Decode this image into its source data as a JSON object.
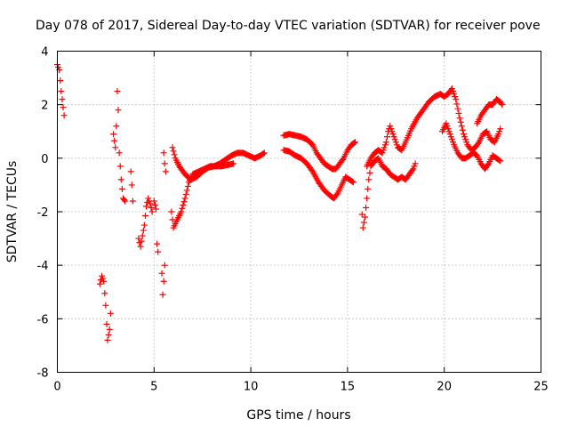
{
  "chart_data": {
    "type": "scatter",
    "title": "Day 078 of 2017, Sidereal Day-to-day VTEC variation (SDTVAR) for receiver pove",
    "xlabel": "GPS time / hours",
    "ylabel": "SDTVAR / TECUs",
    "xlim": [
      0,
      25
    ],
    "ylim": [
      -8,
      4
    ],
    "xticks": [
      "0",
      "5",
      "10",
      "15",
      "20",
      "25"
    ],
    "yticks": [
      "-8",
      "-6",
      "-4",
      "-2",
      "0",
      "2",
      "4"
    ],
    "grid": true,
    "marker": "+",
    "color": "#ff0000",
    "segments": [
      [
        [
          0.0,
          3.5
        ],
        [
          0.1,
          3.3
        ],
        [
          0.15,
          2.9
        ],
        [
          0.2,
          2.5
        ],
        [
          0.25,
          2.2
        ],
        [
          0.3,
          1.9
        ],
        [
          0.35,
          1.6
        ]
      ],
      [
        [
          2.2,
          -4.7
        ],
        [
          2.3,
          -4.4
        ],
        [
          2.4,
          -4.6
        ],
        [
          2.5,
          -5.5
        ],
        [
          2.55,
          -6.2
        ],
        [
          2.6,
          -6.8
        ],
        [
          2.7,
          -6.4
        ],
        [
          2.75,
          -5.8
        ]
      ],
      [
        [
          2.9,
          0.9
        ],
        [
          3.0,
          0.4
        ],
        [
          3.05,
          1.2
        ],
        [
          3.1,
          2.5
        ],
        [
          3.15,
          1.8
        ],
        [
          3.2,
          0.2
        ],
        [
          3.3,
          -0.8
        ],
        [
          3.4,
          -1.5
        ],
        [
          3.5,
          -1.6
        ]
      ],
      [
        [
          3.8,
          -0.5
        ],
        [
          3.85,
          -1.0
        ],
        [
          3.9,
          -1.6
        ]
      ],
      [
        [
          4.2,
          -3.0
        ],
        [
          4.3,
          -3.3
        ],
        [
          4.4,
          -2.9
        ],
        [
          4.5,
          -2.5
        ],
        [
          4.6,
          -1.8
        ],
        [
          4.7,
          -1.5
        ],
        [
          4.8,
          -1.7
        ],
        [
          4.9,
          -2.0
        ]
      ],
      [
        [
          5.0,
          -1.6
        ],
        [
          5.1,
          -1.9
        ],
        [
          5.15,
          -3.2
        ],
        [
          5.2,
          -3.5
        ]
      ],
      [
        [
          5.4,
          -4.3
        ],
        [
          5.45,
          -5.1
        ],
        [
          5.5,
          -4.6
        ],
        [
          5.55,
          -4.0
        ]
      ],
      [
        [
          5.5,
          0.2
        ],
        [
          5.55,
          -0.2
        ],
        [
          5.6,
          -0.5
        ]
      ],
      [
        [
          5.9,
          -2.0
        ],
        [
          6.0,
          -2.6
        ],
        [
          6.2,
          -2.3
        ],
        [
          6.4,
          -2.0
        ],
        [
          6.6,
          -1.5
        ],
        [
          6.8,
          -0.9
        ],
        [
          7.0,
          -0.6
        ],
        [
          7.3,
          -0.5
        ],
        [
          7.6,
          -0.4
        ],
        [
          7.9,
          -0.3
        ],
        [
          8.2,
          -0.3
        ],
        [
          8.5,
          -0.3
        ],
        [
          8.8,
          -0.25
        ],
        [
          9.1,
          -0.2
        ]
      ],
      [
        [
          5.95,
          0.4
        ],
        [
          6.1,
          0.0
        ],
        [
          6.3,
          -0.3
        ],
        [
          6.6,
          -0.6
        ],
        [
          6.9,
          -0.8
        ],
        [
          7.2,
          -0.7
        ],
        [
          7.5,
          -0.5
        ],
        [
          7.8,
          -0.35
        ],
        [
          8.1,
          -0.3
        ],
        [
          8.4,
          -0.2
        ],
        [
          8.7,
          -0.05
        ],
        [
          9.0,
          0.1
        ],
        [
          9.3,
          0.2
        ],
        [
          9.6,
          0.2
        ],
        [
          9.9,
          0.1
        ],
        [
          10.2,
          0.0
        ],
        [
          10.5,
          0.1
        ],
        [
          10.7,
          0.2
        ]
      ],
      [
        [
          11.7,
          0.3
        ],
        [
          12.0,
          0.25
        ],
        [
          12.3,
          0.1
        ],
        [
          12.6,
          0.0
        ],
        [
          12.9,
          -0.2
        ],
        [
          13.2,
          -0.5
        ],
        [
          13.5,
          -0.9
        ],
        [
          13.8,
          -1.2
        ],
        [
          14.1,
          -1.4
        ],
        [
          14.3,
          -1.5
        ],
        [
          14.5,
          -1.3
        ],
        [
          14.7,
          -1.0
        ],
        [
          14.9,
          -0.7
        ],
        [
          15.1,
          -0.8
        ],
        [
          15.3,
          -0.9
        ]
      ],
      [
        [
          11.7,
          0.85
        ],
        [
          12.0,
          0.9
        ],
        [
          12.3,
          0.85
        ],
        [
          12.6,
          0.8
        ],
        [
          12.9,
          0.7
        ],
        [
          13.2,
          0.5
        ],
        [
          13.4,
          0.2
        ],
        [
          13.6,
          0.0
        ],
        [
          13.8,
          -0.2
        ],
        [
          14.0,
          -0.3
        ],
        [
          14.2,
          -0.4
        ],
        [
          14.4,
          -0.4
        ],
        [
          14.6,
          -0.2
        ],
        [
          14.8,
          0.0
        ],
        [
          15.0,
          0.3
        ],
        [
          15.2,
          0.5
        ],
        [
          15.4,
          0.6
        ]
      ],
      [
        [
          15.75,
          -2.1
        ],
        [
          15.8,
          -2.6
        ],
        [
          15.9,
          -2.2
        ],
        [
          16.0,
          -1.5
        ],
        [
          16.1,
          -0.8
        ],
        [
          16.2,
          -0.3
        ],
        [
          16.4,
          -0.1
        ],
        [
          16.6,
          0.0
        ],
        [
          16.8,
          -0.3
        ],
        [
          17.0,
          -0.4
        ],
        [
          17.2,
          -0.6
        ],
        [
          17.4,
          -0.7
        ],
        [
          17.6,
          -0.8
        ],
        [
          17.8,
          -0.7
        ],
        [
          18.0,
          -0.8
        ],
        [
          18.2,
          -0.6
        ],
        [
          18.4,
          -0.4
        ],
        [
          18.5,
          -0.2
        ]
      ],
      [
        [
          16.0,
          -0.3
        ],
        [
          16.2,
          0.0
        ],
        [
          16.4,
          0.2
        ],
        [
          16.6,
          0.3
        ],
        [
          16.8,
          0.2
        ],
        [
          17.0,
          0.6
        ],
        [
          17.1,
          1.0
        ],
        [
          17.2,
          1.2
        ],
        [
          17.4,
          0.8
        ],
        [
          17.6,
          0.4
        ],
        [
          17.8,
          0.3
        ],
        [
          18.0,
          0.6
        ],
        [
          18.3,
          1.1
        ],
        [
          18.6,
          1.5
        ],
        [
          18.9,
          1.8
        ],
        [
          19.2,
          2.1
        ],
        [
          19.5,
          2.3
        ],
        [
          19.8,
          2.4
        ],
        [
          20.0,
          2.3
        ],
        [
          20.2,
          2.4
        ],
        [
          20.4,
          2.6
        ],
        [
          20.6,
          2.2
        ],
        [
          20.8,
          1.5
        ],
        [
          21.0,
          0.9
        ],
        [
          21.2,
          0.5
        ],
        [
          21.4,
          0.3
        ],
        [
          21.6,
          0.4
        ],
        [
          21.8,
          0.6
        ],
        [
          22.0,
          0.9
        ],
        [
          22.2,
          1.0
        ],
        [
          22.4,
          0.7
        ],
        [
          22.6,
          0.6
        ],
        [
          22.8,
          0.9
        ],
        [
          22.9,
          1.1
        ]
      ],
      [
        [
          19.9,
          1.0
        ],
        [
          20.1,
          1.3
        ],
        [
          20.3,
          0.9
        ],
        [
          20.5,
          0.5
        ],
        [
          20.7,
          0.2
        ],
        [
          20.9,
          0.0
        ],
        [
          21.1,
          0.0
        ],
        [
          21.3,
          0.1
        ],
        [
          21.5,
          0.2
        ],
        [
          21.7,
          0.1
        ],
        [
          21.9,
          -0.2
        ],
        [
          22.1,
          -0.4
        ],
        [
          22.3,
          -0.2
        ],
        [
          22.5,
          0.1
        ],
        [
          22.7,
          0.0
        ],
        [
          22.9,
          -0.1
        ]
      ],
      [
        [
          21.7,
          1.3
        ],
        [
          21.9,
          1.6
        ],
        [
          22.1,
          1.8
        ],
        [
          22.3,
          2.0
        ],
        [
          22.5,
          2.0
        ],
        [
          22.7,
          2.2
        ],
        [
          22.9,
          2.1
        ],
        [
          23.0,
          2.0
        ]
      ]
    ]
  }
}
